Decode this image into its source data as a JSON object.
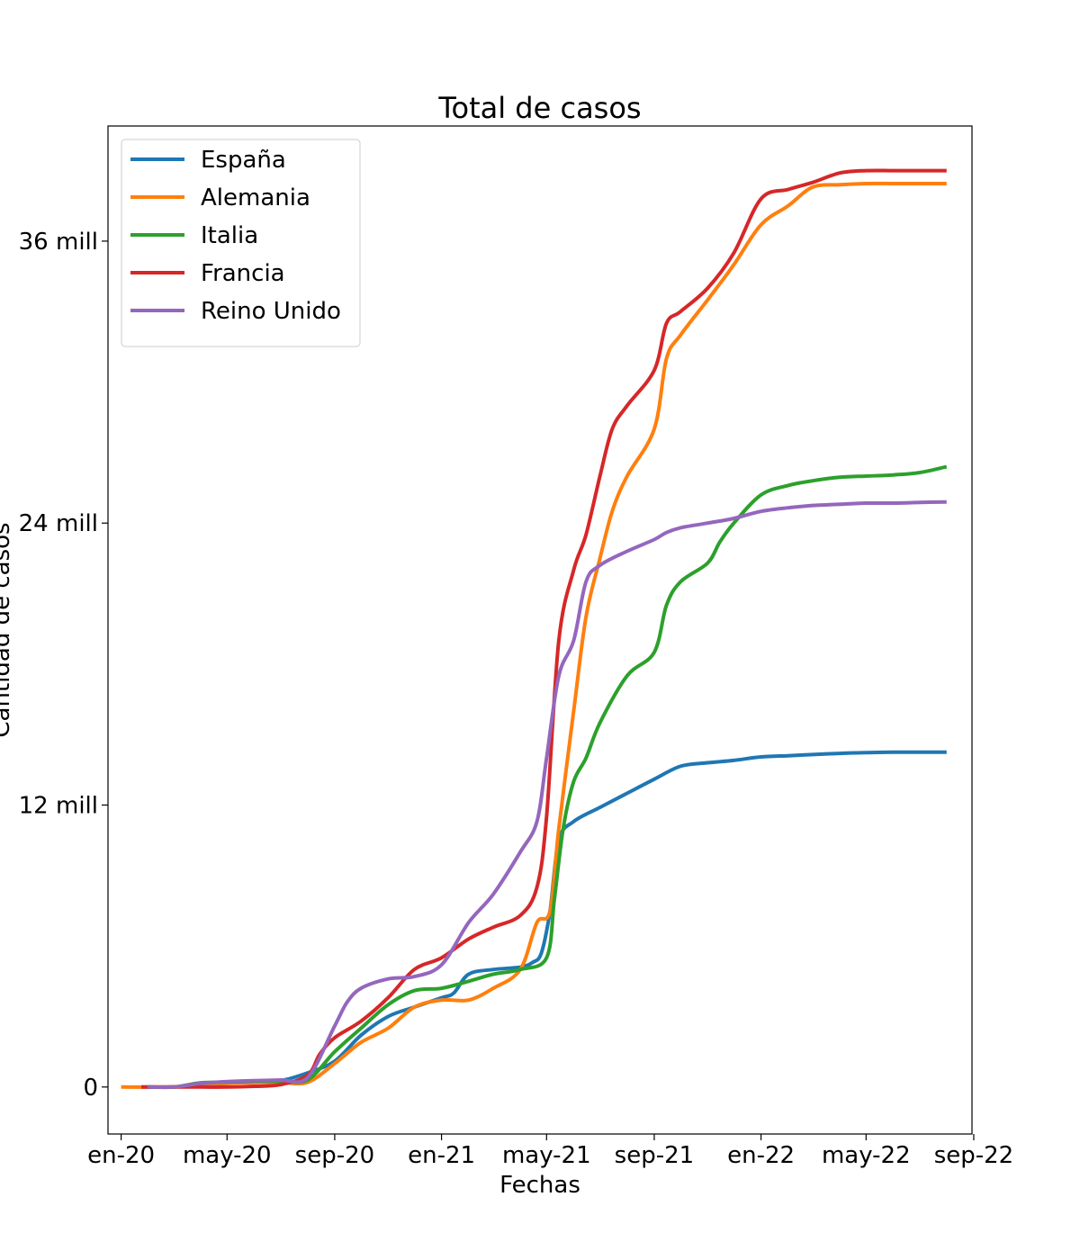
{
  "chart_data": {
    "type": "line",
    "title": "Total de casos",
    "xlabel": "Fechas",
    "ylabel": "Cantidad de casos",
    "x_ticks": [
      "2020-01-01",
      "2020-05-01",
      "2020-09-01",
      "2021-01-01",
      "2021-05-01",
      "2021-09-01",
      "2022-01-01",
      "2022-05-01",
      "2022-09-01"
    ],
    "x_tick_labels": [
      "en-20",
      "may-20",
      "sep-20",
      "en-21",
      "may-21",
      "sep-21",
      "en-22",
      "may-22",
      "sep-22"
    ],
    "y_ticks": [
      0,
      12000000,
      24000000,
      36000000
    ],
    "y_tick_labels": [
      "0",
      "12 mill",
      "24 mill",
      "36 mill"
    ],
    "xlim": [
      "2019-12-17",
      "2022-08-30"
    ],
    "ylim": [
      -2000000,
      40900000
    ],
    "grid": false,
    "legend_position": "top-left",
    "series": [
      {
        "name": "España",
        "color": "#1f77b4",
        "points": [
          [
            "2020-01-31",
            0
          ],
          [
            "2020-03-01",
            0
          ],
          [
            "2020-04-01",
            100000
          ],
          [
            "2020-05-01",
            220000
          ],
          [
            "2020-06-01",
            240000
          ],
          [
            "2020-07-01",
            270000
          ],
          [
            "2020-08-01",
            600000
          ],
          [
            "2020-09-01",
            1100000
          ],
          [
            "2020-10-01",
            2200000
          ],
          [
            "2020-11-01",
            3000000
          ],
          [
            "2020-12-01",
            3400000
          ],
          [
            "2021-01-01",
            3800000
          ],
          [
            "2021-01-15",
            4000000
          ],
          [
            "2021-02-01",
            4800000
          ],
          [
            "2021-03-01",
            5000000
          ],
          [
            "2021-04-01",
            5100000
          ],
          [
            "2021-04-15",
            5300000
          ],
          [
            "2021-04-25",
            5700000
          ],
          [
            "2021-05-05",
            7500000
          ],
          [
            "2021-05-15",
            10500000
          ],
          [
            "2021-06-01",
            11300000
          ],
          [
            "2021-07-01",
            11900000
          ],
          [
            "2021-08-01",
            12500000
          ],
          [
            "2021-09-01",
            13100000
          ],
          [
            "2021-10-01",
            13650000
          ],
          [
            "2021-11-01",
            13800000
          ],
          [
            "2021-12-01",
            13900000
          ],
          [
            "2022-01-01",
            14050000
          ],
          [
            "2022-02-01",
            14100000
          ],
          [
            "2022-03-01",
            14150000
          ],
          [
            "2022-04-01",
            14200000
          ],
          [
            "2022-05-01",
            14230000
          ],
          [
            "2022-06-01",
            14250000
          ],
          [
            "2022-07-01",
            14250000
          ],
          [
            "2022-08-01",
            14250000
          ]
        ]
      },
      {
        "name": "Alemania",
        "color": "#ff7f0e",
        "points": [
          [
            "2020-01-01",
            0
          ],
          [
            "2020-03-01",
            0
          ],
          [
            "2020-04-01",
            80000
          ],
          [
            "2020-05-01",
            160000
          ],
          [
            "2020-06-01",
            190000
          ],
          [
            "2020-07-01",
            200000
          ],
          [
            "2020-08-01",
            200000
          ],
          [
            "2020-09-01",
            1000000
          ],
          [
            "2020-10-01",
            1900000
          ],
          [
            "2020-11-01",
            2500000
          ],
          [
            "2020-12-01",
            3400000
          ],
          [
            "2021-01-01",
            3700000
          ],
          [
            "2021-02-01",
            3700000
          ],
          [
            "2021-03-01",
            4200000
          ],
          [
            "2021-04-01",
            5000000
          ],
          [
            "2021-04-20",
            7000000
          ],
          [
            "2021-05-05",
            7500000
          ],
          [
            "2021-05-15",
            11000000
          ],
          [
            "2021-06-01",
            16000000
          ],
          [
            "2021-06-15",
            20000000
          ],
          [
            "2021-07-01",
            22500000
          ],
          [
            "2021-07-15",
            24500000
          ],
          [
            "2021-08-01",
            26000000
          ],
          [
            "2021-09-01",
            28000000
          ],
          [
            "2021-09-15",
            31000000
          ],
          [
            "2021-10-01",
            32000000
          ],
          [
            "2021-11-01",
            33500000
          ],
          [
            "2021-12-01",
            35000000
          ],
          [
            "2022-01-01",
            36700000
          ],
          [
            "2022-02-01",
            37500000
          ],
          [
            "2022-03-01",
            38300000
          ],
          [
            "2022-04-01",
            38400000
          ],
          [
            "2022-05-01",
            38450000
          ],
          [
            "2022-06-01",
            38450000
          ],
          [
            "2022-07-01",
            38450000
          ],
          [
            "2022-08-01",
            38450000
          ]
        ]
      },
      {
        "name": "Italia",
        "color": "#2ca02c",
        "points": [
          [
            "2020-01-31",
            0
          ],
          [
            "2020-03-01",
            0
          ],
          [
            "2020-04-01",
            180000
          ],
          [
            "2020-05-01",
            210000
          ],
          [
            "2020-06-01",
            240000
          ],
          [
            "2020-07-01",
            250000
          ],
          [
            "2020-08-01",
            300000
          ],
          [
            "2020-09-01",
            1500000
          ],
          [
            "2020-10-01",
            2500000
          ],
          [
            "2020-11-01",
            3500000
          ],
          [
            "2020-12-01",
            4100000
          ],
          [
            "2021-01-01",
            4200000
          ],
          [
            "2021-02-01",
            4500000
          ],
          [
            "2021-03-01",
            4800000
          ],
          [
            "2021-04-01",
            5000000
          ],
          [
            "2021-05-01",
            5500000
          ],
          [
            "2021-05-10",
            8000000
          ],
          [
            "2021-05-20",
            11000000
          ],
          [
            "2021-06-01",
            13000000
          ],
          [
            "2021-06-15",
            14000000
          ],
          [
            "2021-07-01",
            15500000
          ],
          [
            "2021-08-01",
            17500000
          ],
          [
            "2021-09-01",
            18500000
          ],
          [
            "2021-09-15",
            20500000
          ],
          [
            "2021-10-01",
            21500000
          ],
          [
            "2021-11-01",
            22300000
          ],
          [
            "2021-11-15",
            23200000
          ],
          [
            "2021-12-01",
            24000000
          ],
          [
            "2022-01-01",
            25200000
          ],
          [
            "2022-02-01",
            25600000
          ],
          [
            "2022-03-01",
            25800000
          ],
          [
            "2022-04-01",
            25950000
          ],
          [
            "2022-05-01",
            26000000
          ],
          [
            "2022-06-01",
            26050000
          ],
          [
            "2022-07-01",
            26150000
          ],
          [
            "2022-08-01",
            26400000
          ]
        ]
      },
      {
        "name": "Francia",
        "color": "#d62728",
        "points": [
          [
            "2020-01-24",
            0
          ],
          [
            "2020-03-01",
            0
          ],
          [
            "2020-04-01",
            0
          ],
          [
            "2020-05-01",
            0
          ],
          [
            "2020-06-01",
            30000
          ],
          [
            "2020-07-01",
            100000
          ],
          [
            "2020-08-01",
            500000
          ],
          [
            "2020-08-15",
            1400000
          ],
          [
            "2020-09-01",
            2100000
          ],
          [
            "2020-10-01",
            2800000
          ],
          [
            "2020-11-01",
            3800000
          ],
          [
            "2020-12-01",
            5000000
          ],
          [
            "2021-01-01",
            5500000
          ],
          [
            "2021-02-01",
            6300000
          ],
          [
            "2021-03-01",
            6800000
          ],
          [
            "2021-04-01",
            7300000
          ],
          [
            "2021-04-20",
            8500000
          ],
          [
            "2021-05-01",
            11500000
          ],
          [
            "2021-05-15",
            19000000
          ],
          [
            "2021-06-01",
            22000000
          ],
          [
            "2021-06-15",
            23500000
          ],
          [
            "2021-07-01",
            26000000
          ],
          [
            "2021-07-15",
            28000000
          ],
          [
            "2021-08-01",
            29000000
          ],
          [
            "2021-09-01",
            30500000
          ],
          [
            "2021-09-15",
            32500000
          ],
          [
            "2021-10-01",
            33000000
          ],
          [
            "2021-11-01",
            34000000
          ],
          [
            "2021-12-01",
            35500000
          ],
          [
            "2022-01-01",
            37800000
          ],
          [
            "2022-02-01",
            38200000
          ],
          [
            "2022-03-01",
            38500000
          ],
          [
            "2022-04-01",
            38900000
          ],
          [
            "2022-05-01",
            39000000
          ],
          [
            "2022-06-01",
            39000000
          ],
          [
            "2022-07-01",
            39000000
          ],
          [
            "2022-08-01",
            39000000
          ]
        ]
      },
      {
        "name": "Reino Unido",
        "color": "#9467bd",
        "points": [
          [
            "2020-01-31",
            0
          ],
          [
            "2020-03-01",
            0
          ],
          [
            "2020-04-01",
            150000
          ],
          [
            "2020-05-01",
            230000
          ],
          [
            "2020-06-01",
            270000
          ],
          [
            "2020-07-01",
            300000
          ],
          [
            "2020-08-01",
            400000
          ],
          [
            "2020-09-01",
            2600000
          ],
          [
            "2020-09-15",
            3600000
          ],
          [
            "2020-10-01",
            4200000
          ],
          [
            "2020-11-01",
            4600000
          ],
          [
            "2020-12-01",
            4700000
          ],
          [
            "2021-01-01",
            5200000
          ],
          [
            "2021-02-01",
            7000000
          ],
          [
            "2021-03-01",
            8200000
          ],
          [
            "2021-04-01",
            10000000
          ],
          [
            "2021-04-20",
            11300000
          ],
          [
            "2021-05-01",
            14000000
          ],
          [
            "2021-05-15",
            17500000
          ],
          [
            "2021-06-01",
            19000000
          ],
          [
            "2021-06-15",
            21500000
          ],
          [
            "2021-07-01",
            22200000
          ],
          [
            "2021-08-01",
            22800000
          ],
          [
            "2021-09-01",
            23300000
          ],
          [
            "2021-09-15",
            23600000
          ],
          [
            "2021-10-01",
            23800000
          ],
          [
            "2021-11-01",
            24000000
          ],
          [
            "2021-12-01",
            24200000
          ],
          [
            "2022-01-01",
            24500000
          ],
          [
            "2022-02-01",
            24650000
          ],
          [
            "2022-03-01",
            24750000
          ],
          [
            "2022-04-01",
            24800000
          ],
          [
            "2022-05-01",
            24850000
          ],
          [
            "2022-06-01",
            24850000
          ],
          [
            "2022-07-01",
            24880000
          ],
          [
            "2022-08-01",
            24900000
          ]
        ]
      }
    ]
  }
}
